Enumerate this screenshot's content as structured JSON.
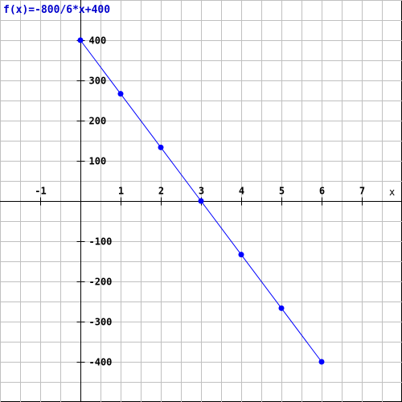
{
  "chart_data": {
    "type": "line",
    "title": "f(x)=-800/6*x+400",
    "xlabel": "x",
    "ylabel": "",
    "xlim": [
      -2,
      8
    ],
    "ylim": [
      -500,
      500
    ],
    "grid": true,
    "x_ticks": [
      "-1",
      "1",
      "2",
      "3",
      "4",
      "5",
      "6",
      "7"
    ],
    "y_ticks": [
      "400",
      "300",
      "200",
      "100",
      "-100",
      "-200",
      "-300",
      "-400"
    ],
    "series": [
      {
        "x": [
          0,
          1,
          2,
          3,
          4,
          5,
          6
        ],
        "y": [
          400,
          266.67,
          133.33,
          0,
          -133.33,
          -266.67,
          -400
        ]
      }
    ]
  },
  "colors": {
    "line": "#0000ff",
    "point": "#0000ff",
    "title": "#0000cc",
    "grid": "#c0c0c0",
    "axis": "#000000"
  }
}
